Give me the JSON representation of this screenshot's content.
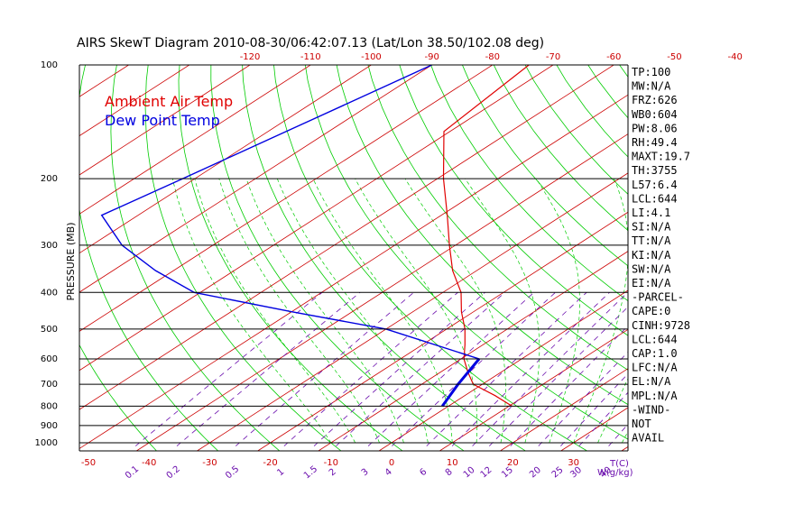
{
  "chart_data": {
    "type": "line",
    "title": "AIRS SkewT Diagram 2010-08-30/06:42:07.13 (Lat/Lon 38.50/102.08 deg)",
    "ylabel": "PRESSURE (MB)",
    "xlabel": "T(C)",
    "mixing_ratio_unit": "W(g/kg)",
    "pressure_ticks": [
      "100",
      "200",
      "300",
      "400",
      "500",
      "600",
      "700",
      "800",
      "900",
      "1000"
    ],
    "top_temp_ticks": [
      "-120",
      "-110",
      "-100",
      "-90",
      "-80",
      "-70",
      "-60",
      "-50",
      "-40"
    ],
    "bottom_temp_ticks": [
      "-50",
      "-40",
      "-30",
      "-20",
      "-10",
      "0",
      "10",
      "20",
      "30"
    ],
    "mixing_ratio_ticks": [
      "0.1",
      "0.2",
      "0.5",
      "1",
      "1.5",
      "2",
      "3",
      "4",
      "6",
      "8",
      "10",
      "12",
      "15",
      "20",
      "25",
      "30",
      "40"
    ],
    "legend": [
      {
        "label": "Ambient Air Temp",
        "color": "#e00000"
      },
      {
        "label": "Dew Point Temp",
        "color": "#0000e0"
      }
    ],
    "series": [
      {
        "name": "Ambient Air Temp",
        "color": "#e00000",
        "points": [
          [
            100,
            -74
          ],
          [
            150,
            -71
          ],
          [
            200,
            -59
          ],
          [
            250,
            -49
          ],
          [
            300,
            -41
          ],
          [
            350,
            -34
          ],
          [
            400,
            -27
          ],
          [
            450,
            -22
          ],
          [
            500,
            -17
          ],
          [
            550,
            -13
          ],
          [
            600,
            -9.5
          ],
          [
            650,
            -5.5
          ],
          [
            700,
            -1.5
          ],
          [
            750,
            5
          ],
          [
            800,
            10.5
          ]
        ]
      },
      {
        "name": "Dew Point Temp",
        "color": "#0000e0",
        "points": [
          [
            100,
            -90
          ],
          [
            150,
            -97
          ],
          [
            200,
            -102
          ],
          [
            250,
            -106
          ],
          [
            300,
            -95
          ],
          [
            350,
            -83
          ],
          [
            400,
            -71
          ],
          [
            450,
            -50
          ],
          [
            500,
            -30
          ],
          [
            600,
            -7
          ],
          [
            700,
            -4
          ],
          [
            800,
            -1
          ]
        ]
      }
    ]
  },
  "side_panel": [
    "TP:100",
    "MW:N/A",
    "FRZ:626",
    "WB0:604",
    "PW:8.06",
    "RH:49.4",
    "MAXT:19.7",
    "TH:3755",
    "L57:6.4",
    "LCL:644",
    "LI:4.1",
    "SI:N/A",
    "TT:N/A",
    "KI:N/A",
    "SW:N/A",
    "EI:N/A",
    "-PARCEL-",
    "CAPE:0",
    "CINH:9728",
    "LCL:644",
    "CAP:1.0",
    "LFC:N/A",
    "EL:N/A",
    "MPL:N/A",
    "-WIND-",
    "NOT",
    "AVAIL"
  ],
  "colors": {
    "isotherm": "#cc0000",
    "dry_adiabat": "#00cc00",
    "mixing_ratio": "#6a0dad",
    "temp_tick": "#cc0000",
    "moist_adiabat": "#00cc00"
  }
}
